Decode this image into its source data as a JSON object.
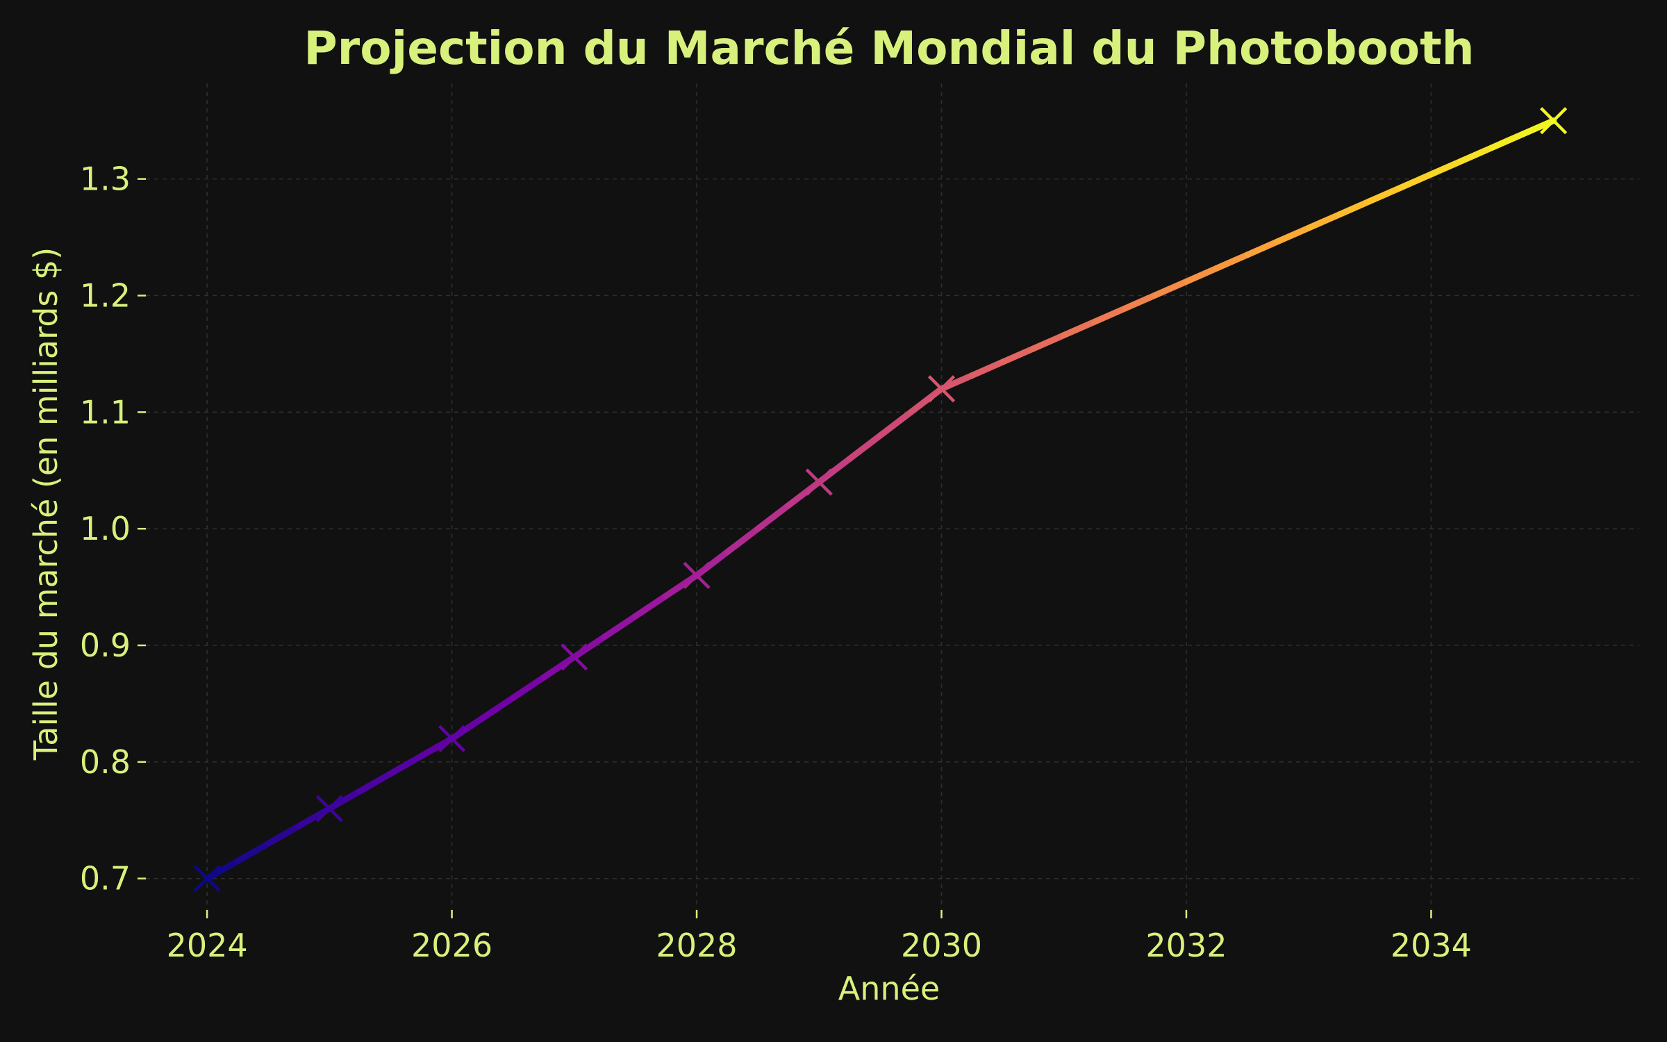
{
  "colors": {
    "background": "#111111",
    "text": "#d8f17c",
    "grid": "#2e2e2e",
    "series_gradient": [
      "#0d0887",
      "#46039f",
      "#7201a8",
      "#9c179e",
      "#bd3786",
      "#d8576b",
      "#ed7953",
      "#fb9f3a",
      "#fdca26",
      "#f0f921"
    ]
  },
  "chart_data": {
    "type": "line",
    "title": "Projection du Marché Mondial du Photobooth",
    "xlabel": "Année",
    "ylabel": "Taille du marché (en milliards $)",
    "x": [
      2024,
      2025,
      2026,
      2027,
      2028,
      2029,
      2030,
      2035
    ],
    "series": [
      {
        "values": [
          0.7,
          0.76,
          0.82,
          0.89,
          0.96,
          1.04,
          1.12,
          1.35
        ]
      }
    ],
    "xlim": [
      2023.5,
      2035.7
    ],
    "ylim": [
      0.673,
      1.382
    ],
    "xticks": [
      2024,
      2026,
      2028,
      2030,
      2032,
      2034
    ],
    "xtick_labels": [
      "2024",
      "2026",
      "2028",
      "2030",
      "2032",
      "2034"
    ],
    "yticks": [
      0.7,
      0.8,
      0.9,
      1.0,
      1.1,
      1.2,
      1.3
    ],
    "ytick_labels": [
      "0.7",
      "0.8",
      "0.9",
      "1.0",
      "1.1",
      "1.2",
      "1.3"
    ],
    "marker": "x",
    "colormap": "plasma",
    "grid": true
  }
}
